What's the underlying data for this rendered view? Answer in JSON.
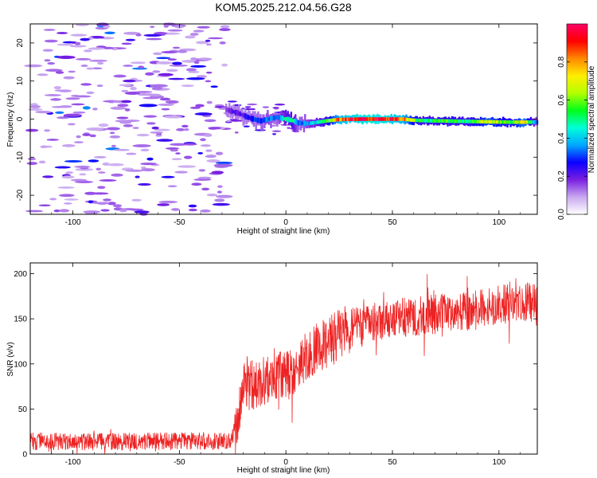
{
  "title": "KOM5.2025.212.04.56.G28",
  "chart_data": [
    {
      "type": "heatmap",
      "title": "KOM5.2025.212.04.56.G28",
      "xlabel": "Height of straight line (km)",
      "ylabel": "Frequency (Hz)",
      "xlim": [
        -120,
        118
      ],
      "ylim": [
        -25,
        25
      ],
      "x_ticks": [
        -100,
        -50,
        0,
        50,
        100
      ],
      "y_ticks": [
        -20,
        -10,
        0,
        10,
        20
      ],
      "colorbar": {
        "label": "Normalized spectral amplitude",
        "range": [
          0.0,
          1.0
        ],
        "ticks": [
          "0.0",
          "0.2",
          "0.4",
          "0.6",
          "0.8"
        ],
        "colors": [
          "#ffffff",
          "#c9a8f0",
          "#7a1fe0",
          "#0a00ff",
          "#00a8ff",
          "#00ffd8",
          "#00ff1a",
          "#b4ff00",
          "#ffee00",
          "#ff8800",
          "#ff0000",
          "#ff0066"
        ]
      },
      "signal_track": [
        {
          "x": -28,
          "y": 2.5,
          "amp": 0.15
        },
        {
          "x": -25,
          "y": 2.0,
          "amp": 0.2
        },
        {
          "x": -22,
          "y": 1.5,
          "amp": 0.2
        },
        {
          "x": -18,
          "y": 0.5,
          "amp": 0.25
        },
        {
          "x": -15,
          "y": 0.0,
          "amp": 0.3
        },
        {
          "x": -12,
          "y": -0.5,
          "amp": 0.3
        },
        {
          "x": -8,
          "y": 0.0,
          "amp": 0.35
        },
        {
          "x": -4,
          "y": 0.5,
          "amp": 0.3
        },
        {
          "x": 0,
          "y": 0.0,
          "amp": 0.45
        },
        {
          "x": 3,
          "y": -0.3,
          "amp": 0.5
        },
        {
          "x": 6,
          "y": -1.0,
          "amp": 0.3
        },
        {
          "x": 10,
          "y": -1.2,
          "amp": 0.35
        },
        {
          "x": 15,
          "y": -0.8,
          "amp": 0.45
        },
        {
          "x": 20,
          "y": -0.4,
          "amp": 0.55
        },
        {
          "x": 25,
          "y": -0.1,
          "amp": 0.85
        },
        {
          "x": 35,
          "y": 0.0,
          "amp": 0.95
        },
        {
          "x": 45,
          "y": 0.0,
          "amp": 0.95
        },
        {
          "x": 55,
          "y": 0.0,
          "amp": 0.85
        },
        {
          "x": 60,
          "y": -0.3,
          "amp": 0.6
        },
        {
          "x": 65,
          "y": -0.4,
          "amp": 0.5
        },
        {
          "x": 75,
          "y": -0.5,
          "amp": 0.55
        },
        {
          "x": 85,
          "y": -0.6,
          "amp": 0.5
        },
        {
          "x": 95,
          "y": -0.7,
          "amp": 0.7
        },
        {
          "x": 105,
          "y": -0.8,
          "amp": 0.55
        },
        {
          "x": 112,
          "y": -0.8,
          "amp": 0.75
        },
        {
          "x": 118,
          "y": -0.8,
          "amp": 0.3
        }
      ],
      "noise_region": {
        "x_range": [
          -120,
          -28
        ],
        "y_range": [
          -25,
          25
        ],
        "typical_amp": 0.15
      }
    },
    {
      "type": "line",
      "xlabel": "Height of straight line (km)",
      "ylabel": "SNR (v/v)",
      "xlim": [
        -120,
        118
      ],
      "ylim": [
        0,
        212
      ],
      "x_ticks": [
        -100,
        -50,
        0,
        50,
        100
      ],
      "y_ticks": [
        0,
        50,
        100,
        150,
        200
      ],
      "series": [
        {
          "color": "#ee2222",
          "trend": [
            {
              "x": -120,
              "y": 14
            },
            {
              "x": -50,
              "y": 14
            },
            {
              "x": -26,
              "y": 15
            },
            {
              "x": -23,
              "y": 35
            },
            {
              "x": -20,
              "y": 75
            },
            {
              "x": -10,
              "y": 80
            },
            {
              "x": 0,
              "y": 88
            },
            {
              "x": 5,
              "y": 90
            },
            {
              "x": 10,
              "y": 110
            },
            {
              "x": 20,
              "y": 125
            },
            {
              "x": 30,
              "y": 140
            },
            {
              "x": 50,
              "y": 150
            },
            {
              "x": 70,
              "y": 155
            },
            {
              "x": 90,
              "y": 160
            },
            {
              "x": 110,
              "y": 170
            },
            {
              "x": 118,
              "y": 168
            }
          ]
        }
      ]
    }
  ]
}
